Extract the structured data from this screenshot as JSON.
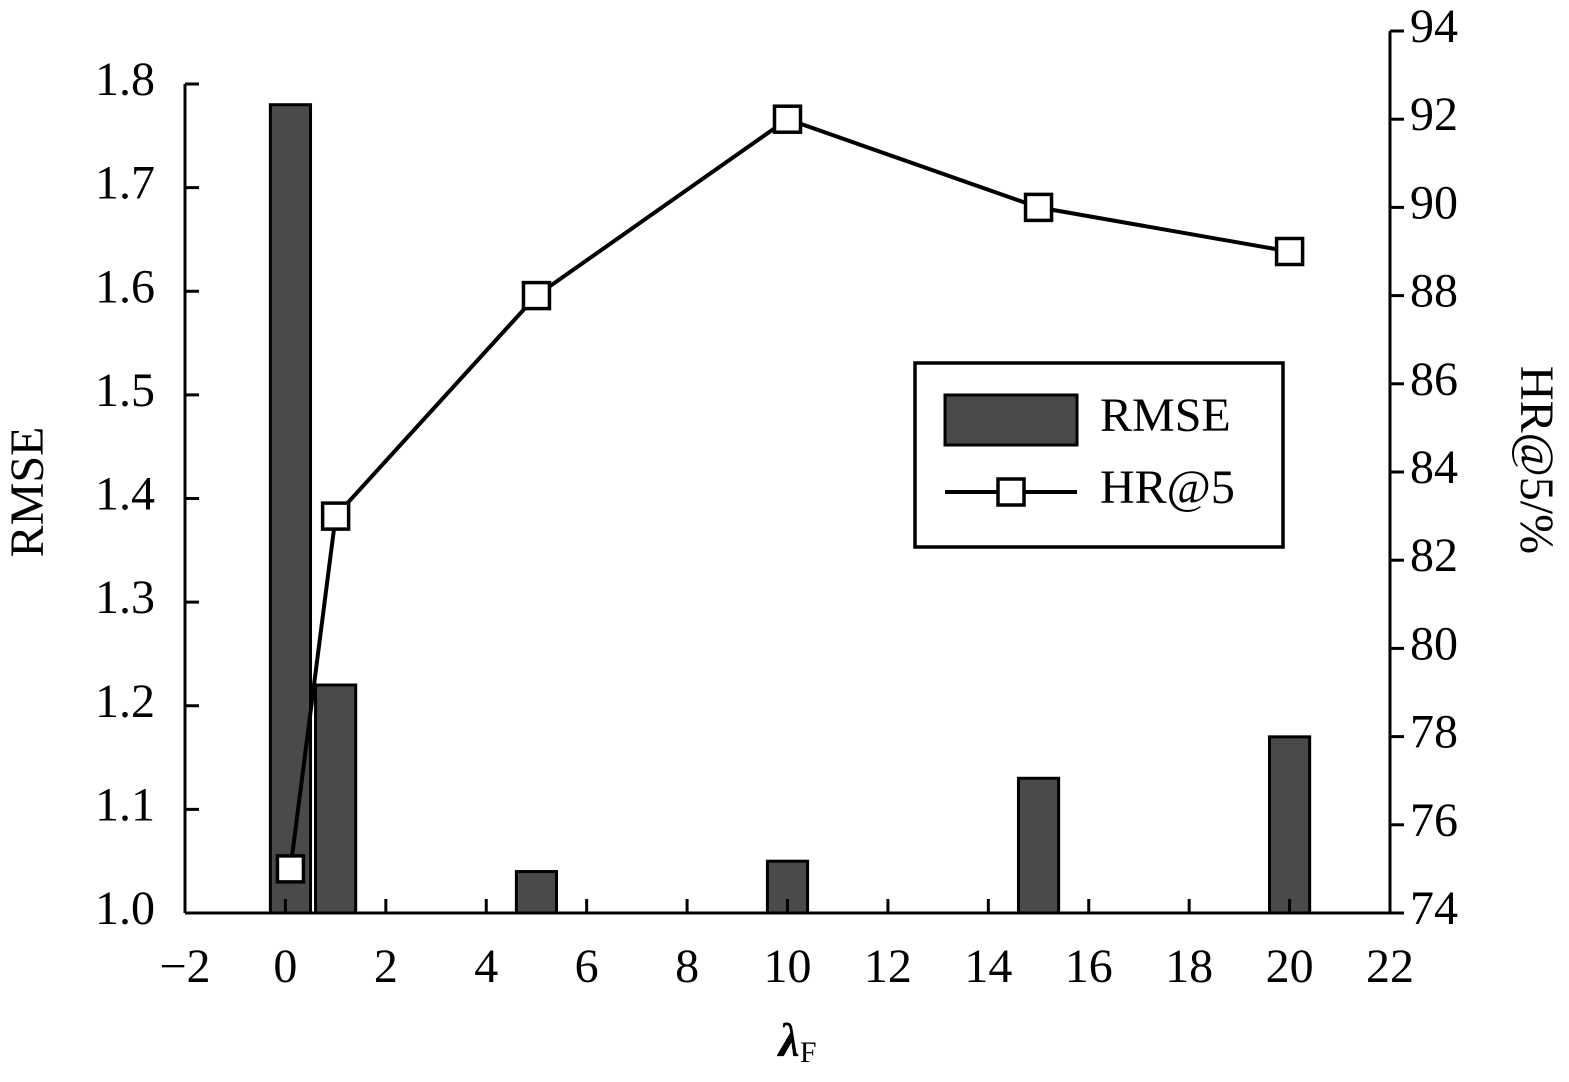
{
  "chart_data": {
    "type": "combo",
    "xlabel": "λ",
    "xlabel_subscript": "F",
    "ylabel": "RMSE",
    "y2label": "HR@5/%",
    "x": [
      0.1,
      1,
      5,
      10,
      15,
      20
    ],
    "series": [
      {
        "name": "RMSE",
        "type": "bar",
        "color": "#4a4a4a",
        "values": [
          1.78,
          1.22,
          1.04,
          1.05,
          1.13,
          1.17
        ]
      },
      {
        "name": "HR@5",
        "type": "line",
        "color": "#000000",
        "axis": "y2",
        "values": [
          75,
          83,
          88,
          92,
          90,
          89
        ]
      }
    ],
    "xlim": [
      -2,
      22
    ],
    "xticks": [
      {
        "value": -2,
        "label": "−2"
      },
      0,
      2,
      4,
      6,
      8,
      10,
      12,
      14,
      16,
      18,
      20,
      22
    ],
    "ylim": [
      1.0,
      1.8
    ],
    "yticks": [
      {
        "value": 1.0,
        "label": "1.0"
      },
      1.1,
      1.2,
      1.3,
      1.4,
      1.5,
      1.6,
      1.7,
      1.8
    ],
    "y2lim": [
      74,
      94
    ],
    "y2ticks": [
      74,
      76,
      78,
      80,
      82,
      84,
      86,
      88,
      90,
      92,
      94
    ],
    "legend": "center right",
    "grid": false
  }
}
